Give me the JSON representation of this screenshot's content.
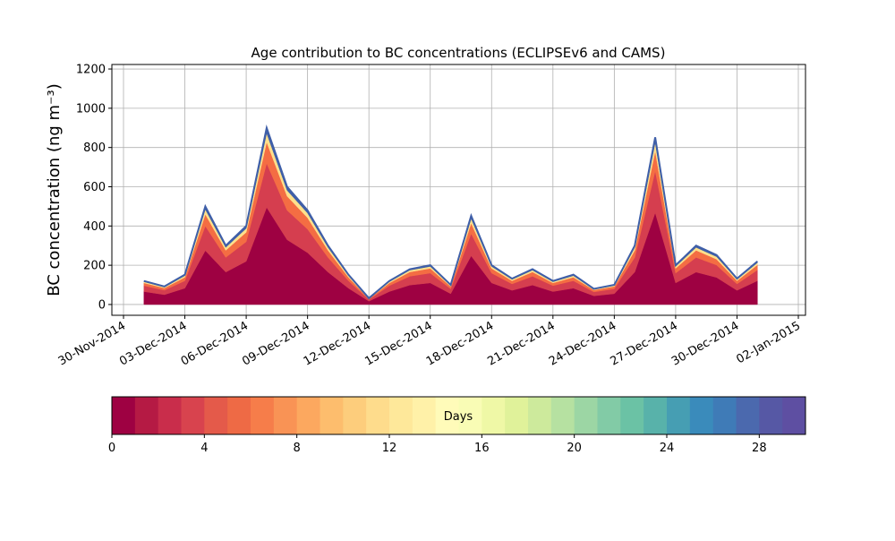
{
  "chart_data": {
    "type": "stacked_area",
    "title": "Age contribution to BC concentrations (ECLIPSEv6 and CAMS)",
    "ylabel": "BC concentration (ng m⁻³)",
    "x": [
      "01-Dec-2014",
      "02-Dec-2014",
      "03-Dec-2014",
      "04-Dec-2014",
      "05-Dec-2014",
      "06-Dec-2014",
      "07-Dec-2014",
      "08-Dec-2014",
      "09-Dec-2014",
      "10-Dec-2014",
      "11-Dec-2014",
      "12-Dec-2014",
      "13-Dec-2014",
      "14-Dec-2014",
      "15-Dec-2014",
      "16-Dec-2014",
      "17-Dec-2014",
      "18-Dec-2014",
      "19-Dec-2014",
      "20-Dec-2014",
      "21-Dec-2014",
      "22-Dec-2014",
      "23-Dec-2014",
      "24-Dec-2014",
      "25-Dec-2014",
      "26-Dec-2014",
      "27-Dec-2014",
      "28-Dec-2014",
      "29-Dec-2014",
      "30-Dec-2014",
      "31-Dec-2014"
    ],
    "series": [
      {
        "color": "#9e0142",
        "values": [
          66,
          50,
          83,
          275,
          165,
          220,
          495,
          330,
          264,
          165,
          83,
          17,
          66,
          99,
          110,
          55,
          248,
          110,
          72,
          99,
          66,
          83,
          44,
          55,
          165,
          468,
          110,
          165,
          138,
          72,
          121
        ]
      },
      {
        "color": "#d53e4f",
        "values": [
          30,
          23,
          38,
          125,
          75,
          100,
          225,
          150,
          120,
          75,
          38,
          8,
          30,
          45,
          50,
          25,
          113,
          50,
          33,
          45,
          30,
          38,
          20,
          25,
          75,
          213,
          50,
          75,
          63,
          33,
          55
        ]
      },
      {
        "color": "#f46d43",
        "values": [
          14,
          11,
          18,
          60,
          36,
          48,
          108,
          72,
          58,
          36,
          18,
          4,
          14,
          22,
          24,
          12,
          54,
          24,
          16,
          22,
          14,
          18,
          10,
          12,
          36,
          102,
          24,
          36,
          30,
          16,
          26
        ]
      },
      {
        "color": "#fee08b",
        "values": [
          6,
          5,
          8,
          25,
          15,
          20,
          45,
          30,
          24,
          15,
          8,
          2,
          6,
          9,
          10,
          5,
          23,
          10,
          7,
          9,
          6,
          8,
          4,
          5,
          15,
          43,
          10,
          15,
          13,
          7,
          11
        ]
      },
      {
        "color": "#3f5fa8",
        "values": [
          4,
          3,
          5,
          15,
          9,
          12,
          27,
          18,
          14,
          9,
          5,
          1,
          4,
          5,
          6,
          3,
          14,
          6,
          4,
          5,
          4,
          5,
          2,
          3,
          9,
          26,
          6,
          9,
          8,
          4,
          7
        ]
      }
    ],
    "xlim": [
      "30-Nov-2014",
      "02-Jan-2015"
    ],
    "xticks": [
      "30-Nov-2014",
      "03-Dec-2014",
      "06-Dec-2014",
      "09-Dec-2014",
      "12-Dec-2014",
      "15-Dec-2014",
      "18-Dec-2014",
      "21-Dec-2014",
      "24-Dec-2014",
      "27-Dec-2014",
      "30-Dec-2014",
      "02-Jan-2015"
    ],
    "ylim": [
      -55,
      1223
    ],
    "yticks": [
      0,
      200,
      400,
      600,
      800,
      1000,
      1200
    ],
    "grid": true,
    "colorbar": {
      "label": "Days",
      "lim": [
        0,
        30
      ],
      "ticks": [
        0,
        4,
        8,
        12,
        16,
        20,
        24,
        28
      ],
      "colors": [
        "#9e0142",
        "#b51a44",
        "#c92d4b",
        "#d8434e",
        "#e45a4a",
        "#ee6a45",
        "#f67d4a",
        "#f99355",
        "#fca85f",
        "#fdbd6d",
        "#fdcd7c",
        "#fedc8c",
        "#fee89a",
        "#fff1a8",
        "#fffbb9",
        "#f9fcb5",
        "#eff8a6",
        "#e0f29a",
        "#cdea9c",
        "#b6e1a1",
        "#9cd6a4",
        "#82cba6",
        "#6bc2a5",
        "#58b2aa",
        "#469eb3",
        "#3a8bbb",
        "#3f7bb7",
        "#4b69ae",
        "#5658a5",
        "#5e4fa2"
      ]
    }
  }
}
